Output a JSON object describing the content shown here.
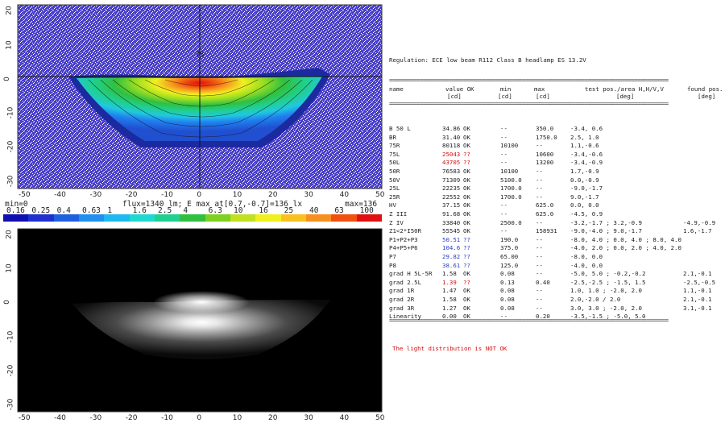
{
  "chart_data": [
    {
      "type": "heatmap",
      "title": "",
      "xlim": [
        -52,
        50
      ],
      "ylim": [
        -32,
        22
      ],
      "x_ticks": [
        "-50",
        "-40",
        "-30",
        "-20",
        "-10",
        "0",
        "10",
        "20",
        "30",
        "40",
        "50"
      ],
      "y_ticks": [
        "20",
        "10",
        "0",
        "-10",
        "-20",
        "-30"
      ],
      "point_label": "75",
      "info": {
        "min": "min=0",
        "flux": "flux=1340 lm; E max at[0.7,-0.7]=136 lx",
        "max": "max=136"
      },
      "colorbar": {
        "labels": [
          "0.16",
          "0.25",
          "0.4",
          "0.63",
          "1",
          "1.6",
          "2.5",
          "4",
          "6.3",
          "10",
          "16",
          "25",
          "40",
          "63",
          "100"
        ],
        "colors": [
          "#1010b0",
          "#2030d0",
          "#2060e0",
          "#2090f0",
          "#20b8f0",
          "#20d8d0",
          "#20d090",
          "#30c040",
          "#80d020",
          "#c0e020",
          "#f0f020",
          "#f8c020",
          "#f89020",
          "#f05010",
          "#e01010"
        ]
      }
    },
    {
      "type": "heatmap",
      "title": "",
      "xlim": [
        -52,
        50
      ],
      "ylim": [
        -32,
        22
      ],
      "x_ticks": [
        "-50",
        "-40",
        "-30",
        "-20",
        "-10",
        "0",
        "10",
        "20",
        "30",
        "40",
        "50"
      ],
      "y_ticks": [
        "20",
        "10",
        "0",
        "-10",
        "-20",
        "-30"
      ]
    }
  ],
  "report": {
    "regulation": "Regulation: ECE low beam R112 Class B headlamp ES 13.2V",
    "separator": "==========================================================================================",
    "columns": {
      "name": "name",
      "value": "value OK",
      "value_unit": "[cd]",
      "min": "min",
      "min_unit": "[cd]",
      "max": "max",
      "max_unit": "[cd]",
      "test": "test pos./area H,H/V,V",
      "test_unit": "[deg]",
      "found": "found pos.",
      "found_unit": "[deg]"
    },
    "rows": [
      {
        "name": "B 50 L",
        "value": "34.86",
        "ok": "OK",
        "min": "--",
        "max": "350.0",
        "test": "-3.4, 0.6",
        "found": ""
      },
      {
        "name": "BR",
        "value": "31.40",
        "ok": "OK",
        "min": "--",
        "max": "1750.0",
        "test": "2.5, 1.0",
        "found": ""
      },
      {
        "name": "75R",
        "value": "80118",
        "ok": "OK",
        "min": "10100",
        "max": "--",
        "test": "1.1,-0.6",
        "found": ""
      },
      {
        "name": "75L",
        "value": "25043",
        "ok": "??",
        "min": "--",
        "max": "10600",
        "test": "-3.4,-0.6",
        "found": ""
      },
      {
        "name": "50L",
        "value": "43705",
        "ok": "??",
        "min": "--",
        "max": "13200",
        "test": "-3.4,-0.9",
        "found": ""
      },
      {
        "name": "50R",
        "value": "76583",
        "ok": "OK",
        "min": "10100",
        "max": "--",
        "test": "1.7,-0.9",
        "found": ""
      },
      {
        "name": "50V",
        "value": "71309",
        "ok": "OK",
        "min": "5100.0",
        "max": "--",
        "test": "0.0,-0.9",
        "found": ""
      },
      {
        "name": "25L",
        "value": "22235",
        "ok": "OK",
        "min": "1700.0",
        "max": "--",
        "test": "-9.0,-1.7",
        "found": ""
      },
      {
        "name": "25R",
        "value": "22552",
        "ok": "OK",
        "min": "1700.0",
        "max": "--",
        "test": "9.0,-1.7",
        "found": ""
      },
      {
        "name": "HV",
        "value": "37.15",
        "ok": "OK",
        "min": "--",
        "max": "625.0",
        "test": "0.0, 0.0",
        "found": ""
      },
      {
        "name": "Z III",
        "value": "91.68",
        "ok": "OK",
        "min": "--",
        "max": "625.0",
        "test": "-4.5, 0.9",
        "found": ""
      },
      {
        "name": "Z IV",
        "value": "33840",
        "ok": "OK",
        "min": "2500.0",
        "max": "--",
        "test": "-3.2,-1.7 ;  3.2,-0.9",
        "found": "-4.9,-0.9"
      },
      {
        "name": "Z1<2*I50R",
        "value": "55545",
        "ok": "OK",
        "min": "--",
        "max": "158931",
        "test": "-9.0,-4.0 ;  9.0,-1.7",
        "found": "1.6,-1.7"
      },
      {
        "name": "P1+P2+P3",
        "value": "50.51",
        "ok": "??",
        "min": "190.0",
        "max": "--",
        "test": "-8.0, 4.0 ;  0.0, 4.0 ;  8.0, 4.0",
        "found": ""
      },
      {
        "name": "P4+P5+P6",
        "value": "104.6",
        "ok": "??",
        "min": "375.0",
        "max": "--",
        "test": "-4.0, 2.0 ;  0.0, 2.0 ;  4.0, 2.0",
        "found": ""
      },
      {
        "name": "P7",
        "value": "29.82",
        "ok": "??",
        "min": "65.00",
        "max": "--",
        "test": "-8.0, 0.0",
        "found": ""
      },
      {
        "name": "P8",
        "value": "38.61",
        "ok": "??",
        "min": "125.0",
        "max": "--",
        "test": "-4.0, 0.0",
        "found": ""
      },
      {
        "name": "grad H 5L-5R",
        "value": "1.58",
        "ok": "OK",
        "min": "0.08",
        "max": "--",
        "test": "-5.0, 5.0 ; -0.2,-0.2",
        "found": "2.1,-0.1"
      },
      {
        "name": "grad 2.5L",
        "value": "1.39",
        "ok": "??",
        "min": "0.13",
        "max": "0.40",
        "test": "-2.5,-2.5 ; -1.5, 1.5",
        "found": "-2.5,-0.5"
      },
      {
        "name": "grad 1R",
        "value": "1.47",
        "ok": "OK",
        "min": "0.08",
        "max": "--",
        "test": "1.0, 1.0 ; -2.0, 2.0",
        "found": "1.1,-0.1"
      },
      {
        "name": "grad 2R",
        "value": "1.58",
        "ok": "OK",
        "min": "0.08",
        "max": "--",
        "test": "2.0,-2.0  /  2.0",
        "found": "2.1,-0.1"
      },
      {
        "name": "grad 3R",
        "value": "1.27",
        "ok": "OK",
        "min": "0.08",
        "max": "--",
        "test": "3.0, 3.0 ; -2.0, 2.0",
        "found": "3.1,-0.1"
      },
      {
        "name": "Linearity",
        "value": "0.00",
        "ok": "OK",
        "min": "--",
        "max": "0.20",
        "test": "-3.5,-1.5 ; -5.0, 5.0",
        "found": ""
      }
    ],
    "verdict": "The light distribution is NOT OK",
    "colors": {
      "fail": "#d01010",
      "blue": "#2a3fbf",
      "text": "#222222"
    }
  }
}
